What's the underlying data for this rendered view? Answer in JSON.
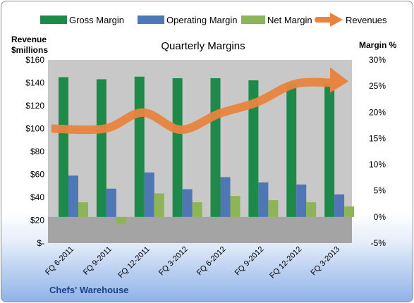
{
  "legend": {
    "gross": "Gross Margin",
    "operating": "Operating Margin",
    "net": "Net Margin",
    "revenues": "Revenues"
  },
  "left_axis_title": [
    "Revenue",
    "$millions"
  ],
  "right_axis_title": "Margin %",
  "company": "Chefs' Warehouse",
  "colors": {
    "gross": "#1e8a49",
    "operating": "#4f76b5",
    "net": "#8db457",
    "revenues": "#e9843f",
    "plot_bg": "#c8c8c8"
  },
  "chart_data": {
    "type": "bar",
    "title": "Quarterly Margins",
    "categories": [
      "FQ 6-2011",
      "FQ 9-2011",
      "FQ 12-2011",
      "FQ 3-2012",
      "FQ 6-2012",
      "FQ 9-2012",
      "FQ 12-2012",
      "FQ 3-2013"
    ],
    "left_axis": {
      "title": "Revenue $millions",
      "ylim": [
        0,
        160
      ],
      "ticks": [
        0,
        20,
        40,
        60,
        80,
        100,
        120,
        140,
        160
      ],
      "tick_labels": [
        "$-",
        "$20",
        "$40",
        "$60",
        "$80",
        "$100",
        "$120",
        "$140",
        "$160"
      ]
    },
    "right_axis": {
      "title": "Margin %",
      "ylim": [
        -5,
        30
      ],
      "ticks": [
        -5,
        0,
        5,
        10,
        15,
        20,
        25,
        30
      ],
      "tick_labels": [
        "-5%",
        "0%",
        "5%",
        "10%",
        "15%",
        "20%",
        "25%",
        "30%"
      ]
    },
    "series": [
      {
        "name": "Gross Margin",
        "axis": "right",
        "type": "bar",
        "values": [
          26.7,
          26.3,
          26.8,
          26.5,
          26.5,
          26.1,
          25.5,
          25.6
        ]
      },
      {
        "name": "Operating Margin",
        "axis": "right",
        "type": "bar",
        "values": [
          7.9,
          5.4,
          8.5,
          5.3,
          7.6,
          6.6,
          6.2,
          4.3
        ]
      },
      {
        "name": "Net Margin",
        "axis": "right",
        "type": "bar",
        "values": [
          2.8,
          -1.4,
          4.5,
          2.8,
          4.0,
          3.2,
          2.8,
          2.0
        ]
      },
      {
        "name": "Revenues",
        "axis": "left",
        "type": "line",
        "values": [
          100,
          100,
          114,
          99,
          113,
          123,
          139,
          140
        ]
      }
    ],
    "grid": false,
    "legend_position": "top"
  }
}
